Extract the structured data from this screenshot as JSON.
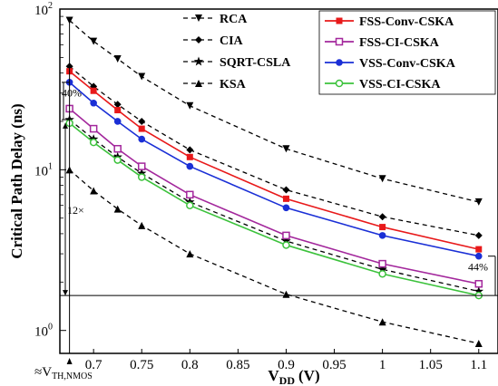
{
  "chart_data": {
    "type": "line",
    "xlabel": "V",
    "xlabel_sub": "DD",
    "xlabel_unit": "(V)",
    "ylabel": "Critical Path Delay (ns)",
    "yscale": "log",
    "xlim": [
      0.665,
      1.12
    ],
    "ylim": [
      0.72,
      100
    ],
    "x_ticks": [
      0.7,
      0.75,
      0.8,
      0.85,
      0.9,
      0.95,
      1,
      1.05,
      1.1
    ],
    "x_tick_labels": [
      "0.7",
      "0.75",
      "0.8",
      "0.85",
      "0.9",
      "0.95",
      "1",
      "1.05",
      "1.1"
    ],
    "y_ticks": [
      {
        "value": 1,
        "base": "10",
        "exp": "0"
      },
      {
        "value": 10,
        "base": "10",
        "exp": "1"
      },
      {
        "value": 100,
        "base": "10",
        "exp": "2"
      }
    ],
    "threshold_label_prefix": "≈V",
    "threshold_label_sub": "TH,NMOS",
    "grid": false,
    "legend_placement": "top",
    "series": [
      {
        "name": "RCA",
        "style": "dashed",
        "color": "#000000",
        "marker": "triangle-down",
        "x": [
          0.675,
          0.7,
          0.725,
          0.75,
          0.8,
          0.9,
          1,
          1.1
        ],
        "y": [
          85,
          63,
          49,
          38,
          25,
          13.5,
          8.8,
          6.3
        ]
      },
      {
        "name": "CIA",
        "style": "dashed",
        "color": "#000000",
        "marker": "diamond",
        "x": [
          0.675,
          0.7,
          0.725,
          0.75,
          0.8,
          0.9,
          1,
          1.1
        ],
        "y": [
          44,
          33,
          25.5,
          20,
          13.3,
          7.5,
          5.1,
          3.9
        ]
      },
      {
        "name": "SQRT-CSLA",
        "style": "dashed",
        "color": "#000000",
        "marker": "star",
        "x": [
          0.675,
          0.7,
          0.725,
          0.75,
          0.8,
          0.9,
          1,
          1.1
        ],
        "y": [
          20.5,
          15.5,
          12,
          9.5,
          6.3,
          3.6,
          2.4,
          1.75
        ]
      },
      {
        "name": "KSA",
        "style": "dashed",
        "color": "#000000",
        "marker": "triangle-up",
        "x": [
          0.675,
          0.7,
          0.725,
          0.75,
          0.8,
          0.9,
          1,
          1.1
        ],
        "y": [
          10,
          7.4,
          5.7,
          4.5,
          3.0,
          1.68,
          1.13,
          0.83
        ]
      },
      {
        "name": "FSS-Conv-CSKA",
        "style": "solid",
        "color": "#e8191a",
        "marker": "square-filled",
        "x": [
          0.675,
          0.7,
          0.725,
          0.75,
          0.8,
          0.9,
          1,
          1.1
        ],
        "y": [
          41,
          31,
          23.5,
          18,
          12,
          6.6,
          4.4,
          3.2
        ]
      },
      {
        "name": "FSS-CI-CSKA",
        "style": "solid",
        "color": "#a3279c",
        "marker": "square-open",
        "x": [
          0.675,
          0.7,
          0.725,
          0.75,
          0.8,
          0.9,
          1,
          1.1
        ],
        "y": [
          24,
          18,
          13.5,
          10.5,
          7.0,
          3.9,
          2.6,
          1.95
        ]
      },
      {
        "name": "VSS-Conv-CSKA",
        "style": "solid",
        "color": "#1a2fd6",
        "marker": "circle-filled",
        "x": [
          0.675,
          0.7,
          0.725,
          0.75,
          0.8,
          0.9,
          1,
          1.1
        ],
        "y": [
          35,
          26,
          20,
          15.5,
          10.5,
          5.8,
          3.9,
          2.9
        ]
      },
      {
        "name": "VSS-CI-CSKA",
        "style": "solid",
        "color": "#3cc23c",
        "marker": "circle-open",
        "x": [
          0.675,
          0.7,
          0.725,
          0.75,
          0.8,
          0.9,
          1,
          1.1
        ],
        "y": [
          19.5,
          14.8,
          11.5,
          9.0,
          6.0,
          3.4,
          2.25,
          1.65
        ]
      }
    ],
    "annotations": [
      {
        "text": "40%"
      },
      {
        "text": "12×"
      },
      {
        "text": "44%"
      }
    ]
  }
}
